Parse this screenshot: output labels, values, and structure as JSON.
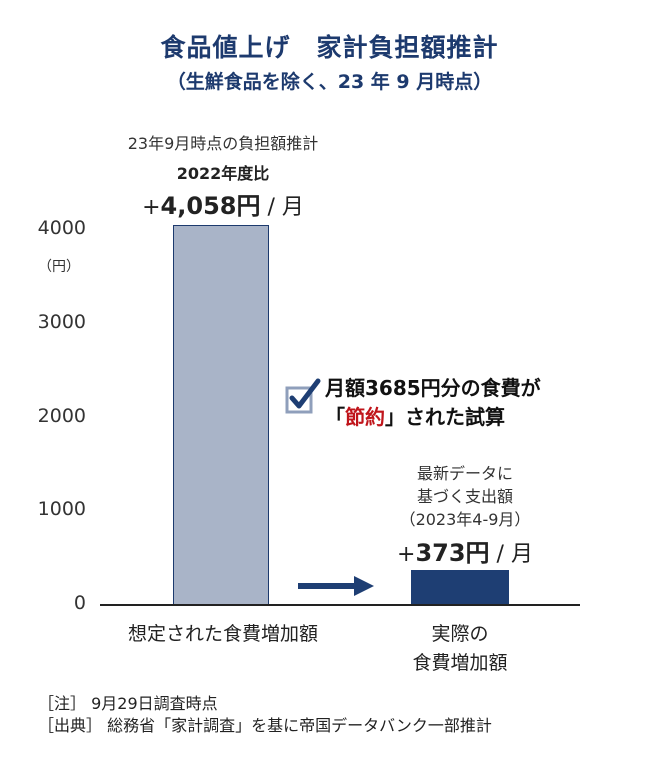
{
  "title": "食品値上げ　家計負担額推計",
  "subtitle": "（生鮮食品を除く、23 年 9 月時点）",
  "chart_data": {
    "type": "bar",
    "categories": [
      "想定された食費増加額",
      "実際の食費増加額"
    ],
    "category_lines": [
      [
        "想定された食費増加額"
      ],
      [
        "実際の",
        "食費増加額"
      ]
    ],
    "values": [
      4058,
      373
    ],
    "ylim": [
      0,
      4000
    ],
    "yticks": [
      "0",
      "1000",
      "2000",
      "3000",
      "4000"
    ],
    "ytick_values": [
      0,
      1000,
      2000,
      3000,
      4000
    ],
    "y_unit": "（円）",
    "grid": false,
    "bar_colors": [
      "#a9b4c8",
      "#1e3e73"
    ]
  },
  "annotations": {
    "bar1_line1": "23年9月時点の負担額推計",
    "bar1_line2": "2022年度比",
    "bar1_prefix": "+",
    "bar1_value": "4,058円",
    "bar1_suffix": " / 月",
    "bar2_line1": "最新データに",
    "bar2_line2": "基づく支出額",
    "bar2_line3": "（2023年4-9月）",
    "bar2_prefix": "+",
    "bar2_value": "373円",
    "bar2_suffix": " / 月",
    "note_line1": "月額3685円分の食費が",
    "note_open": "「",
    "note_highlight": "節約",
    "note_close": "」された試算",
    "check_icon": "checkbox-checked-icon",
    "arrow_icon": "arrow-right-icon"
  },
  "footnotes": {
    "note": "［注］ 9月29日調査時点",
    "source": "［出典］ 総務省「家計調査」を基に帝国データバンク一部推計"
  },
  "colors": {
    "title": "#1d3a6e",
    "highlight": "#c0151b"
  }
}
